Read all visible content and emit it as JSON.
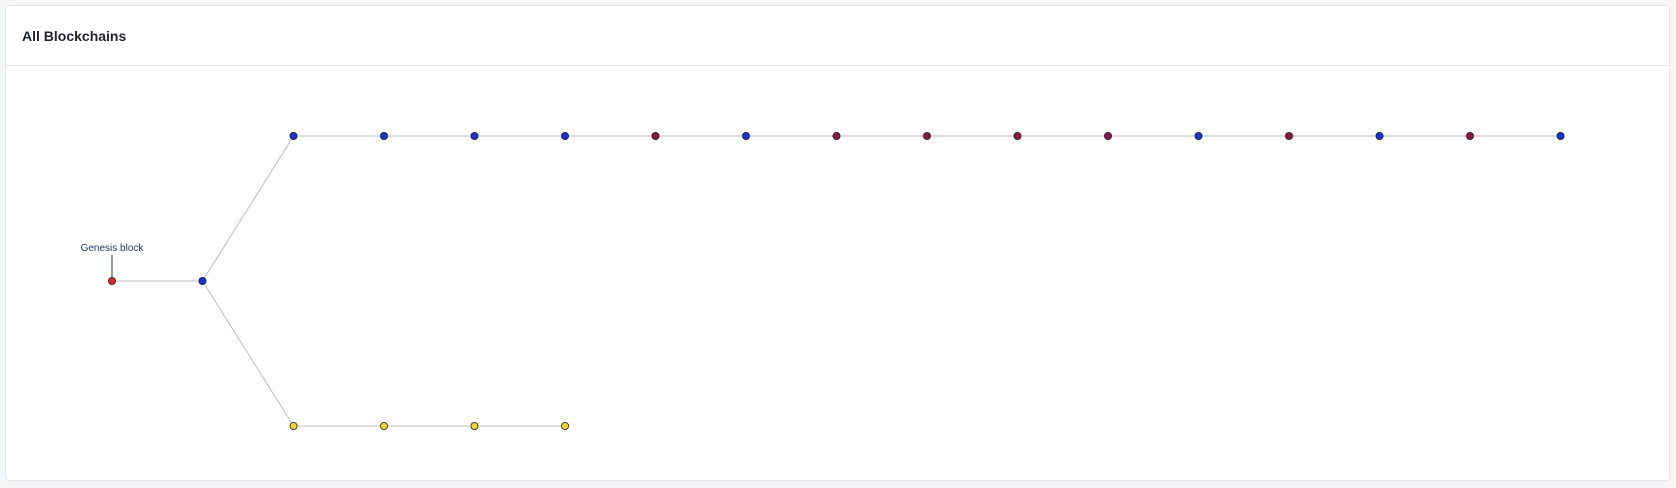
{
  "page": {
    "title": "All Blockchains"
  },
  "diagram": {
    "genesis_label": "Genesis block",
    "colors": {
      "red": "#d8262d",
      "blue": "#1433d6",
      "maroon": "#8c1446",
      "yellow": "#f2d22c",
      "edge": "#bdbdbd",
      "stroke": "#222222"
    },
    "chains": [
      {
        "id": "root",
        "blocks": [
          "red",
          "blue"
        ]
      },
      {
        "id": "upper",
        "blocks": [
          "blue",
          "blue",
          "blue",
          "blue",
          "maroon",
          "blue",
          "maroon",
          "maroon",
          "maroon",
          "maroon",
          "blue",
          "maroon",
          "blue",
          "maroon",
          "blue"
        ]
      },
      {
        "id": "lower",
        "blocks": [
          "yellow",
          "yellow",
          "yellow",
          "yellow"
        ]
      }
    ]
  }
}
